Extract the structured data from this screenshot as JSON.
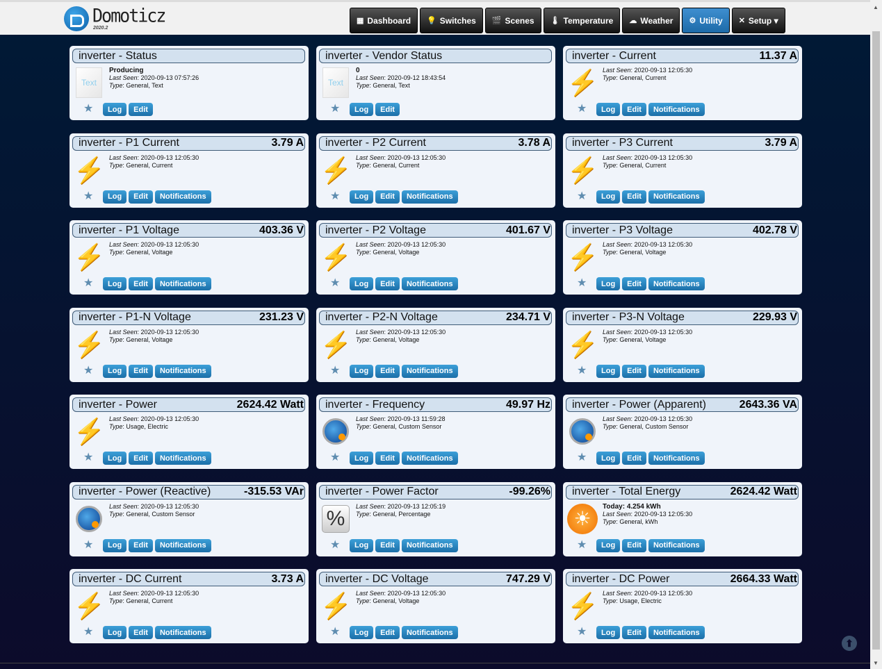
{
  "header": {
    "brand": "Domoticz",
    "version": "2020.2"
  },
  "nav": [
    {
      "label": "Dashboard",
      "icon": "dashboard-icon",
      "glyph": "▦"
    },
    {
      "label": "Switches",
      "icon": "bulb-icon",
      "glyph": "💡"
    },
    {
      "label": "Scenes",
      "icon": "scenes-icon",
      "glyph": "🎬"
    },
    {
      "label": "Temperature",
      "icon": "thermometer-icon",
      "glyph": "🌡"
    },
    {
      "label": "Weather",
      "icon": "cloud-icon",
      "glyph": "☁"
    },
    {
      "label": "Utility",
      "icon": "utility-icon",
      "glyph": "⚙",
      "active": true
    },
    {
      "label": "Setup ▾",
      "icon": "tools-icon",
      "glyph": "✕"
    }
  ],
  "buttons": {
    "log": "Log",
    "edit": "Edit",
    "notifications": "Notifications"
  },
  "labels": {
    "last_seen": "Last Seen",
    "type": "Type"
  },
  "accent": "#1e70a8",
  "devices": [
    {
      "name": "inverter - Status",
      "value": "",
      "extra": "Producing",
      "last_seen": "2020-09-13 07:57:26",
      "type": "General, Text",
      "icon": "text",
      "notif": false
    },
    {
      "name": "inverter - Vendor Status",
      "value": "",
      "extra": "0",
      "last_seen": "2020-09-12 18:43:54",
      "type": "General, Text",
      "icon": "text",
      "notif": false
    },
    {
      "name": "inverter - Current",
      "value": "11.37 A",
      "last_seen": "2020-09-13 12:05:30",
      "type": "General, Current",
      "icon": "bolt",
      "notif": true
    },
    {
      "name": "inverter - P1 Current",
      "value": "3.79 A",
      "last_seen": "2020-09-13 12:05:30",
      "type": "General, Current",
      "icon": "bolt",
      "notif": true
    },
    {
      "name": "inverter - P2 Current",
      "value": "3.78 A",
      "last_seen": "2020-09-13 12:05:30",
      "type": "General, Current",
      "icon": "bolt",
      "notif": true
    },
    {
      "name": "inverter - P3 Current",
      "value": "3.79 A",
      "last_seen": "2020-09-13 12:05:30",
      "type": "General, Current",
      "icon": "bolt",
      "notif": true
    },
    {
      "name": "inverter - P1 Voltage",
      "value": "403.36 V",
      "last_seen": "2020-09-13 12:05:30",
      "type": "General, Voltage",
      "icon": "bolt",
      "notif": true
    },
    {
      "name": "inverter - P2 Voltage",
      "value": "401.67 V",
      "last_seen": "2020-09-13 12:05:30",
      "type": "General, Voltage",
      "icon": "bolt",
      "notif": true
    },
    {
      "name": "inverter - P3 Voltage",
      "value": "402.78 V",
      "last_seen": "2020-09-13 12:05:30",
      "type": "General, Voltage",
      "icon": "bolt",
      "notif": true
    },
    {
      "name": "inverter - P1-N Voltage",
      "value": "231.23 V",
      "last_seen": "2020-09-13 12:05:30",
      "type": "General, Voltage",
      "icon": "bolt",
      "notif": true
    },
    {
      "name": "inverter - P2-N Voltage",
      "value": "234.71 V",
      "last_seen": "2020-09-13 12:05:30",
      "type": "General, Voltage",
      "icon": "bolt",
      "notif": true
    },
    {
      "name": "inverter - P3-N Voltage",
      "value": "229.93 V",
      "last_seen": "2020-09-13 12:05:30",
      "type": "General, Voltage",
      "icon": "bolt",
      "notif": true
    },
    {
      "name": "inverter - Power",
      "value": "2624.42 Watt",
      "last_seen": "2020-09-13 12:05:30",
      "type": "Usage, Electric",
      "icon": "bolt",
      "notif": true
    },
    {
      "name": "inverter - Frequency",
      "value": "49.97 Hz",
      "last_seen": "2020-09-13 11:59:28",
      "type": "General, Custom Sensor",
      "icon": "globe",
      "notif": true
    },
    {
      "name": "inverter - Power (Apparent)",
      "value": "2643.36 VA",
      "last_seen": "2020-09-13 12:05:30",
      "type": "General, Custom Sensor",
      "icon": "globe",
      "notif": true
    },
    {
      "name": "inverter - Power (Reactive)",
      "value": "-315.53 VAr",
      "last_seen": "2020-09-13 12:05:30",
      "type": "General, Custom Sensor",
      "icon": "globe",
      "notif": true
    },
    {
      "name": "inverter - Power Factor",
      "value": "-99.26%",
      "last_seen": "2020-09-13 12:05:19",
      "type": "General, Percentage",
      "icon": "percent",
      "notif": true
    },
    {
      "name": "inverter - Total Energy",
      "value": "2624.42 Watt",
      "extra": "Today: 4.254 kWh",
      "last_seen": "2020-09-13 12:05:30",
      "type": "General, kWh",
      "icon": "sun",
      "notif": true
    },
    {
      "name": "inverter - DC Current",
      "value": "3.73 A",
      "last_seen": "2020-09-13 12:05:30",
      "type": "General, Current",
      "icon": "bolt",
      "notif": true
    },
    {
      "name": "inverter - DC Voltage",
      "value": "747.29 V",
      "last_seen": "2020-09-13 12:05:30",
      "type": "General, Voltage",
      "icon": "bolt",
      "notif": true
    },
    {
      "name": "inverter - DC Power",
      "value": "2664.33 Watt",
      "last_seen": "2020-09-13 12:05:30",
      "type": "Usage, Electric",
      "icon": "bolt",
      "notif": true
    }
  ]
}
